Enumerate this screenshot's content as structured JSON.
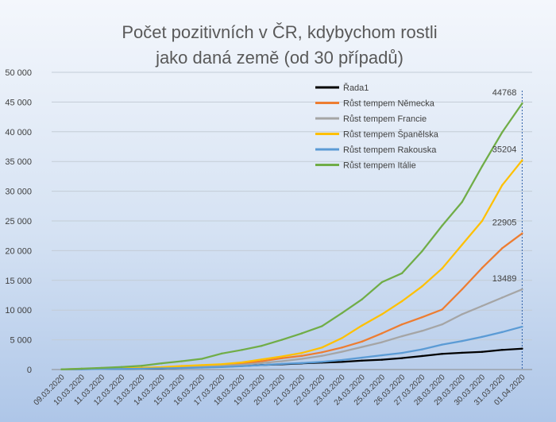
{
  "chart_data": {
    "type": "line",
    "title_line1": "Počet pozitivních v ČR, kdybychom rostli",
    "title_line2": "jako daná země (od 30 případů)",
    "categories": [
      "09.03.2020",
      "10.03.2020",
      "11.03.2020",
      "12.03.2020",
      "13.03.2020",
      "14.03.2020",
      "15.03.2020",
      "16.03.2020",
      "17.03.2020",
      "18.03.2020",
      "19.03.2020",
      "20.03.2020",
      "21.03.2020",
      "22.03.2020",
      "23.03.2020",
      "24.03.2020",
      "25.03.2020",
      "26.03.2020",
      "27.03.2020",
      "28.03.2020",
      "29.03.2020",
      "30.03.2020",
      "31.03.2020",
      "01.04.2020"
    ],
    "y_ticks": [
      "0",
      "5 000",
      "10 000",
      "15 000",
      "20 000",
      "25 000",
      "30 000",
      "35 000",
      "40 000",
      "45 000",
      "50 000"
    ],
    "ylim": [
      0,
      50000
    ],
    "grid": true,
    "legend_position": "top-center",
    "series": [
      {
        "name": "Řada1",
        "color": "#000000",
        "values": [
          40,
          63,
          94,
          116,
          141,
          189,
          298,
          383,
          464,
          608,
          765,
          889,
          1047,
          1165,
          1289,
          1497,
          1654,
          1925,
          2279,
          2631,
          2817,
          2980,
          3308,
          3508
        ]
      },
      {
        "name": "Růst tempem Německa",
        "color": "#ed7d31",
        "values": [
          40,
          90,
          130,
          170,
          260,
          380,
          500,
          640,
          760,
          1000,
          1400,
          1900,
          2300,
          2900,
          3700,
          4700,
          6100,
          7600,
          8800,
          10100,
          13500,
          17100,
          20400,
          22905
        ],
        "end_label": "22905"
      },
      {
        "name": "Růst tempem Francie",
        "color": "#a5a5a5",
        "values": [
          40,
          80,
          110,
          150,
          200,
          280,
          400,
          520,
          640,
          800,
          1100,
          1400,
          1800,
          2300,
          3000,
          3800,
          4600,
          5600,
          6500,
          7600,
          9300,
          10700,
          12100,
          13489
        ],
        "end_label": "13489"
      },
      {
        "name": "Růst tempem Španělska",
        "color": "#ffc000",
        "values": [
          40,
          80,
          120,
          200,
          300,
          400,
          600,
          750,
          900,
          1200,
          1700,
          2200,
          2800,
          3700,
          5300,
          7400,
          9300,
          11500,
          14000,
          17000,
          21000,
          25000,
          31000,
          35204
        ],
        "end_label": "35204"
      },
      {
        "name": "Růst tempem Rakouska",
        "color": "#5b9bd5",
        "values": [
          40,
          60,
          90,
          110,
          150,
          200,
          260,
          330,
          420,
          560,
          750,
          950,
          1100,
          1300,
          1600,
          2000,
          2400,
          2800,
          3400,
          4200,
          4800,
          5500,
          6300,
          7200
        ]
      },
      {
        "name": "Růst tempem Itálie",
        "color": "#70ad47",
        "values": [
          40,
          150,
          280,
          440,
          640,
          1050,
          1400,
          1800,
          2700,
          3300,
          4000,
          5000,
          6100,
          7300,
          9500,
          11800,
          14700,
          16200,
          19900,
          24200,
          28200,
          34200,
          39900,
          44768
        ],
        "end_label": "44768"
      }
    ]
  }
}
